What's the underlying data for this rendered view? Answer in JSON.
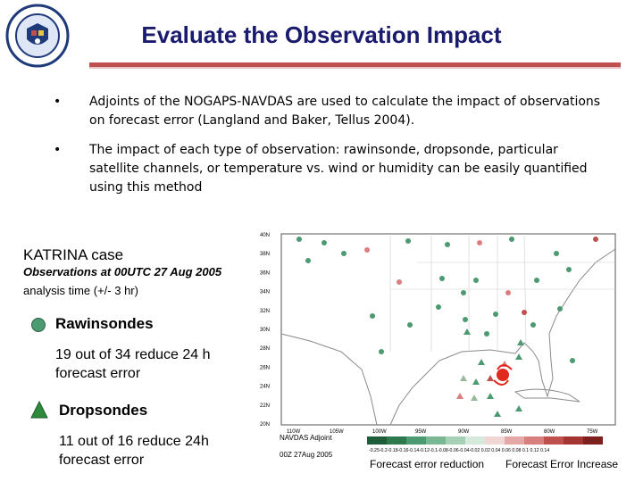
{
  "slide": {
    "title": "Evaluate the Observation Impact",
    "bullets": [
      "Adjoints of the NOGAPS-NAVDAS are used to calculate the impact of observations on forecast error (Langland and Baker, Tellus 2004).",
      "The impact of each type of observation: rawinsonde, dropsonde, particular satellite channels, or temperature vs. wind or humidity can be easily quantified using this method"
    ],
    "case_title": "KATRINA case",
    "obs_line1": "Observations at 00UTC 27 Aug 2005",
    "obs_line2": "analysis time (+/- 3 hr)",
    "rawinsondes_label": "Rawinsondes",
    "rawinsondes_stat": "19 out of 34 reduce 24 h forecast error",
    "dropsondes_label": "Dropsondes",
    "dropsondes_stat": "11 out of 16 reduce 24h forecast error"
  },
  "map": {
    "lat_labels": [
      "40N",
      "38N",
      "36N",
      "34N",
      "32N",
      "30N",
      "28N",
      "26N",
      "24N",
      "22N",
      "20N"
    ],
    "lon_labels": [
      "110W",
      "105W",
      "100W",
      "95W",
      "90W",
      "85W",
      "80W",
      "75W"
    ],
    "footer_line1": "NAVDAS  Adjoint",
    "footer_line2": "00Z 27Aug 2005",
    "colorbar_ticks": "-0.25-0.2-0.18-0.16-0.14-0.12-0.1-0.08-0.06-0.04-0.02 0.02 0.04 0.06 0.08 0.1 0.12 0.14",
    "reduction_label": "Forecast error reduction",
    "increase_label": "Forecast Error Increase"
  },
  "colors": {
    "title": "#1a1a6e",
    "rule": "#c0504d",
    "reduce_green": "#4c9a72",
    "increase_red": "#c0504d"
  }
}
